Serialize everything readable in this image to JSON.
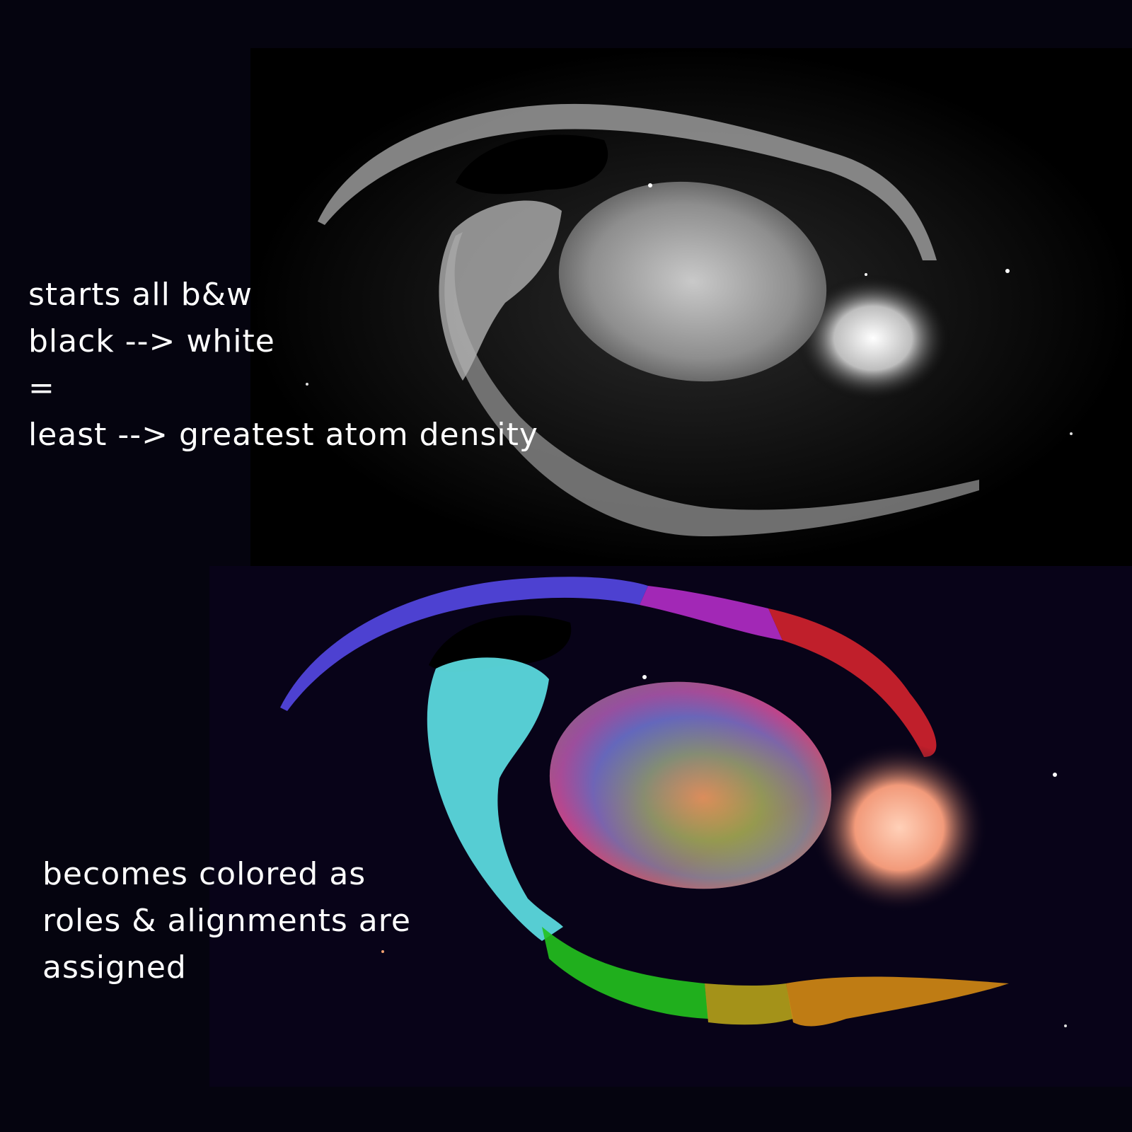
{
  "caption_top": {
    "lines": [
      "starts all b&w",
      "black --> white",
      "=",
      "least --> greatest atom density"
    ]
  },
  "caption_bottom": {
    "lines": [
      "becomes colored as",
      "roles & alignments are",
      "assigned"
    ]
  },
  "colors": {
    "background": "#05040f",
    "arc_blue": "#5548e6",
    "arc_magenta": "#b42cc8",
    "arc_red": "#e0252f",
    "arm_cyan": "#5fe3e8",
    "arm_green": "#24c21e",
    "arm_yellow": "#b6a21a",
    "arm_orange": "#d48a14",
    "cluster_peach": "#f29a7a"
  }
}
